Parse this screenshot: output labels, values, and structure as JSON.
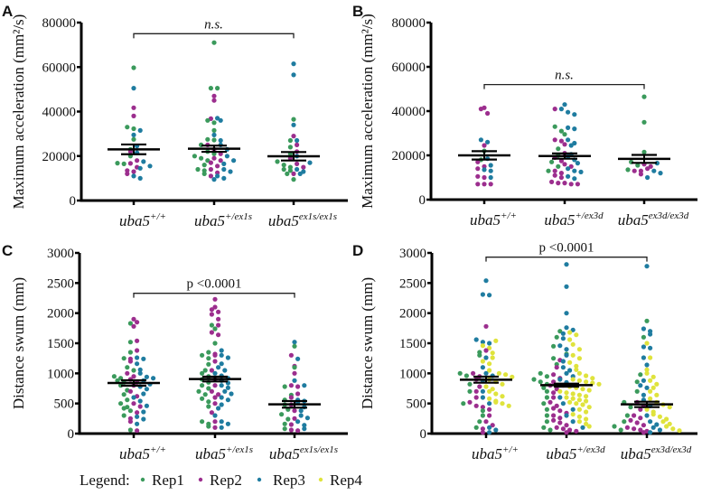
{
  "figure": {
    "legend": {
      "title": "Legend:",
      "entries": [
        {
          "label": "Rep1",
          "color": "#3b9a5c"
        },
        {
          "label": "Rep2",
          "color": "#9c2e8e"
        },
        {
          "label": "Rep3",
          "color": "#1f7ca0"
        },
        {
          "label": "Rep4",
          "color": "#dfe33c"
        }
      ]
    }
  },
  "chart_data": [
    {
      "panel": "A",
      "type": "scatter",
      "ylabel": "Maximum acceleration (mm²/s)",
      "ylim": [
        0,
        80000
      ],
      "yticks": [
        "0",
        "20000",
        "40000",
        "60000",
        "80000"
      ],
      "yticks_values": [
        0,
        20000,
        40000,
        60000,
        80000
      ],
      "categories": [
        {
          "base": "uba5",
          "sup": "+/+"
        },
        {
          "base": "uba5",
          "sup": "+/ex1s"
        },
        {
          "base": "uba5",
          "sup": "ex1s/ex1s"
        }
      ],
      "significance": {
        "label": "n.s.",
        "italic": true,
        "from": 0,
        "to": 2,
        "y": 75000
      },
      "means": [
        23000,
        23300,
        19900
      ],
      "sem": [
        2200,
        1400,
        1900
      ],
      "series": [
        {
          "name": "Rep1",
          "values": [
            [
              59700,
              33000,
              32300,
              27500,
              23000,
              20000,
              16800,
              16500
            ],
            [
              71000,
              50500,
              50500,
              36000,
              35000,
              31500,
              27500,
              27200,
              25000,
              22000,
              21000,
              20000,
              19000,
              18000,
              16000,
              14000,
              13500,
              12000
            ],
            [
              36500,
              27000,
              24000,
              21000,
              17500,
              16000,
              15000,
              14000,
              13500,
              12000,
              9500
            ]
          ]
        },
        {
          "name": "Rep2",
          "values": [
            [
              41700,
              38000,
              22000,
              18000,
              16700,
              15000,
              13500,
              13000,
              12000
            ],
            [
              47000,
              45000,
              36800,
              25000,
              23000,
              21000,
              19000,
              18000,
              17000,
              15500,
              14000,
              12500,
              11000
            ],
            [
              29000,
              25000,
              22000,
              19000,
              16500,
              15000,
              12000
            ]
          ]
        },
        {
          "name": "Rep3",
          "values": [
            [
              50500,
              31500,
              29500,
              24500,
              21500,
              17500,
              15500,
              14500,
              11000,
              10000
            ],
            [
              37000,
              36000,
              29500,
              27000,
              25000,
              23000,
              20000,
              18000,
              16500,
              14000,
              13000,
              11000,
              10000,
              9500
            ],
            [
              61500,
              56500,
              34000,
              27000,
              20000,
              17000,
              14000,
              13000,
              12000
            ]
          ]
        }
      ]
    },
    {
      "panel": "B",
      "type": "scatter",
      "ylabel": "Maximum acceleration (mm²/s)",
      "ylim": [
        0,
        80000
      ],
      "yticks": [
        "0",
        "20000",
        "40000",
        "60000",
        "80000"
      ],
      "yticks_values": [
        0,
        20000,
        40000,
        60000,
        80000
      ],
      "categories": [
        {
          "base": "uba5",
          "sup": "+/+"
        },
        {
          "base": "uba5",
          "sup": "+/ex3d"
        },
        {
          "base": "uba5",
          "sup": "ex3d/ex3d"
        }
      ],
      "significance": {
        "label": "n.s.",
        "italic": true,
        "from": 0,
        "to": 2,
        "y": 52000
      },
      "means": [
        20000,
        19700,
        18400
      ],
      "sem": [
        1900,
        1200,
        1800
      ],
      "series": [
        {
          "name": "Rep1",
          "values": [
            [
              22000,
              18000
            ],
            [
              33000,
              31000,
              29500,
              23000,
              20000,
              17000,
              15000,
              13000
            ],
            [
              46500,
              35000,
              21500,
              17000,
              15500,
              13500
            ]
          ]
        },
        {
          "name": "Rep2",
          "values": [
            [
              41500,
              41000,
              39000,
              24500,
              17000,
              15000,
              14000,
              10500,
              10000,
              7000,
              7000,
              7000
            ],
            [
              41000,
              27000,
              26500,
              25000,
              21000,
              19000,
              17500,
              16000,
              15000,
              13000,
              12000,
              11000,
              10000,
              8000,
              7500,
              7500,
              7000,
              7000
            ],
            [
              16000,
              15000,
              13000,
              13000,
              11500,
              14000
            ]
          ]
        },
        {
          "name": "Rep3",
          "values": [
            [
              27000,
              26000,
              18500,
              15500,
              13500,
              13000,
              10000
            ],
            [
              43000,
              41000,
              39500,
              38500,
              32500,
              32000,
              27000,
              25500,
              24500,
              20500,
              19500,
              18000,
              16500,
              14000,
              13000,
              12500,
              10500,
              9500
            ],
            [
              16500,
              13000,
              12000,
              10000
            ]
          ]
        }
      ]
    },
    {
      "panel": "C",
      "type": "scatter",
      "ylabel": "Distance swum (mm)",
      "ylim": [
        0,
        3000
      ],
      "yticks": [
        "0",
        "500",
        "1000",
        "1500",
        "2000",
        "2500",
        "3000"
      ],
      "yticks_values": [
        0,
        500,
        1000,
        1500,
        2000,
        2500,
        3000
      ],
      "categories": [
        {
          "base": "uba5",
          "sup": "+/+"
        },
        {
          "base": "uba5",
          "sup": "+/ex1s"
        },
        {
          "base": "uba5",
          "sup": "ex1s/ex1s"
        }
      ],
      "significance": {
        "label": "p <0.0001",
        "italic": false,
        "from": 0,
        "to": 2,
        "y": 2330
      },
      "means": [
        840,
        905,
        485
      ],
      "sem": [
        45,
        40,
        55
      ],
      "series": [
        {
          "name": "Rep1",
          "values": [
            [
              1830,
              1520,
              1350,
              1250,
              1100,
              1050,
              950,
              920,
              880,
              850,
              800,
              720,
              650,
              560,
              500,
              440,
              420,
              380,
              300,
              60
            ],
            [
              1800,
              1740,
              1500,
              1350,
              1300,
              1250,
              1150,
              1050,
              1000,
              950,
              900,
              850,
              800,
              750,
              700,
              650,
              580,
              530,
              450,
              200,
              160,
              120
            ],
            [
              1450,
              1100,
              780,
              640,
              560,
              480,
              400,
              320,
              240,
              160,
              80
            ]
          ]
        },
        {
          "name": "Rep2",
          "values": [
            [
              1900,
              1850,
              1780,
              1540,
              1380,
              1240,
              1200,
              1000,
              950,
              900,
              850,
              800,
              700,
              620,
              500,
              450,
              350,
              250,
              200,
              50
            ],
            [
              2230,
              2100,
              2060,
              2020,
              1980,
              1900,
              1800,
              1680,
              1640,
              1320,
              1300,
              1200,
              1050,
              900,
              800,
              700,
              650,
              600,
              500,
              350,
              200,
              100
            ],
            [
              1300,
              1120,
              1000,
              800,
              780,
              660,
              600,
              480,
              380,
              250,
              150,
              60,
              50
            ]
          ]
        },
        {
          "name": "Rep3",
          "values": [
            [
              1260,
              1240,
              1160,
              1060,
              1000,
              940,
              920,
              880,
              820,
              780,
              740,
              660,
              600,
              540,
              460,
              360,
              280,
              240,
              160
            ],
            [
              1380,
              1300,
              1260,
              1160,
              1100,
              1050,
              1000,
              960,
              920,
              880,
              840,
              800,
              760,
              700,
              660,
              600,
              560,
              480,
              420,
              300,
              200,
              160,
              100
            ],
            [
              1520,
              1240,
              880,
              800,
              560,
              540,
              520,
              440,
              380,
              300,
              260,
              200,
              140,
              80
            ]
          ]
        }
      ]
    },
    {
      "panel": "D",
      "type": "scatter",
      "ylabel": "Distance swum (mm)",
      "ylim": [
        0,
        3000
      ],
      "yticks": [
        "0",
        "500",
        "1000",
        "1500",
        "2000",
        "2500",
        "3000"
      ],
      "yticks_values": [
        0,
        500,
        1000,
        1500,
        2000,
        2500,
        3000
      ],
      "categories": [
        {
          "base": "uba5",
          "sup": "+/+"
        },
        {
          "base": "uba5",
          "sup": "+/ex3d"
        },
        {
          "base": "uba5",
          "sup": "ex3d/ex3d"
        }
      ],
      "significance": {
        "label": "p <0.0001",
        "italic": false,
        "from": 0,
        "to": 2,
        "y": 2930
      },
      "means": [
        895,
        805,
        485
      ],
      "sem": [
        50,
        25,
        45
      ],
      "series": [
        {
          "name": "Rep1",
          "values": [
            [
              1350,
              1300,
              1000,
              960,
              820,
              700,
              500,
              380,
              300,
              200,
              100
            ],
            [
              1700,
              1600,
              1450,
              1320,
              1250,
              1150,
              1000,
              950,
              900,
              860,
              820,
              760,
              700,
              600,
              500,
              400,
              300,
              200,
              100,
              60
            ],
            [
              1870,
              1600,
              980,
              860,
              700,
              520,
              440,
              300,
              200,
              120,
              60
            ]
          ]
        },
        {
          "name": "Rep2",
          "values": [
            [
              1780,
              1380,
              1000,
              950,
              900,
              780,
              700,
              600,
              520,
              460,
              440,
              400,
              300,
              200,
              140,
              80,
              20
            ],
            [
              1220,
              1100,
              980,
              920,
              860,
              800,
              740,
              680,
              600,
              520,
              460,
              420,
              380,
              340,
              300,
              260,
              220,
              180,
              140,
              100,
              80,
              60,
              40,
              20
            ],
            [
              520,
              460,
              400,
              300,
              260,
              220,
              180,
              140,
              100,
              80,
              60,
              40,
              20
            ]
          ]
        },
        {
          "name": "Rep3",
          "values": [
            [
              2540,
              2310,
              2300,
              1560,
              1520,
              1500,
              1260,
              1100,
              1000,
              960,
              880,
              700,
              600,
              500,
              100,
              60,
              20
            ],
            [
              2810,
              2440,
              2000,
              1760,
              1720,
              1660,
              1580,
              1460,
              1400,
              1300,
              1200,
              1100,
              1050,
              1000,
              950,
              900,
              850,
              600,
              500,
              400,
              300,
              200,
              100
            ],
            [
              2780,
              1740,
              1700,
              1650,
              1440,
              1420,
              1260,
              1140,
              880,
              800,
              760,
              640,
              560,
              460,
              300,
              200,
              150,
              100,
              60,
              20
            ]
          ]
        },
        {
          "name": "Rep4",
          "values": [
            [
              1540,
              1460,
              1420,
              1340,
              1260,
              1200,
              1160,
              1050,
              1000,
              980,
              940,
              900,
              860,
              820,
              780,
              740,
              700,
              660,
              620,
              580,
              540,
              520,
              500,
              460
            ],
            [
              1680,
              1640,
              1560,
              1480,
              1400,
              1300,
              1250,
              1180,
              1120,
              1060,
              1000,
              960,
              920,
              900,
              880,
              860,
              840,
              820,
              800,
              780,
              760,
              740,
              720,
              700,
              680,
              660,
              640,
              620,
              600,
              580,
              560,
              540,
              520,
              500,
              480,
              440,
              400,
              360,
              320,
              280,
              240,
              200,
              160,
              120
            ],
            [
              1500,
              1260,
              1060,
              1000,
              940,
              880,
              820,
              760,
              700,
              640,
              580,
              520,
              480,
              440,
              400,
              360,
              320,
              280,
              240,
              200,
              160,
              120,
              80,
              50
            ]
          ]
        }
      ]
    }
  ]
}
